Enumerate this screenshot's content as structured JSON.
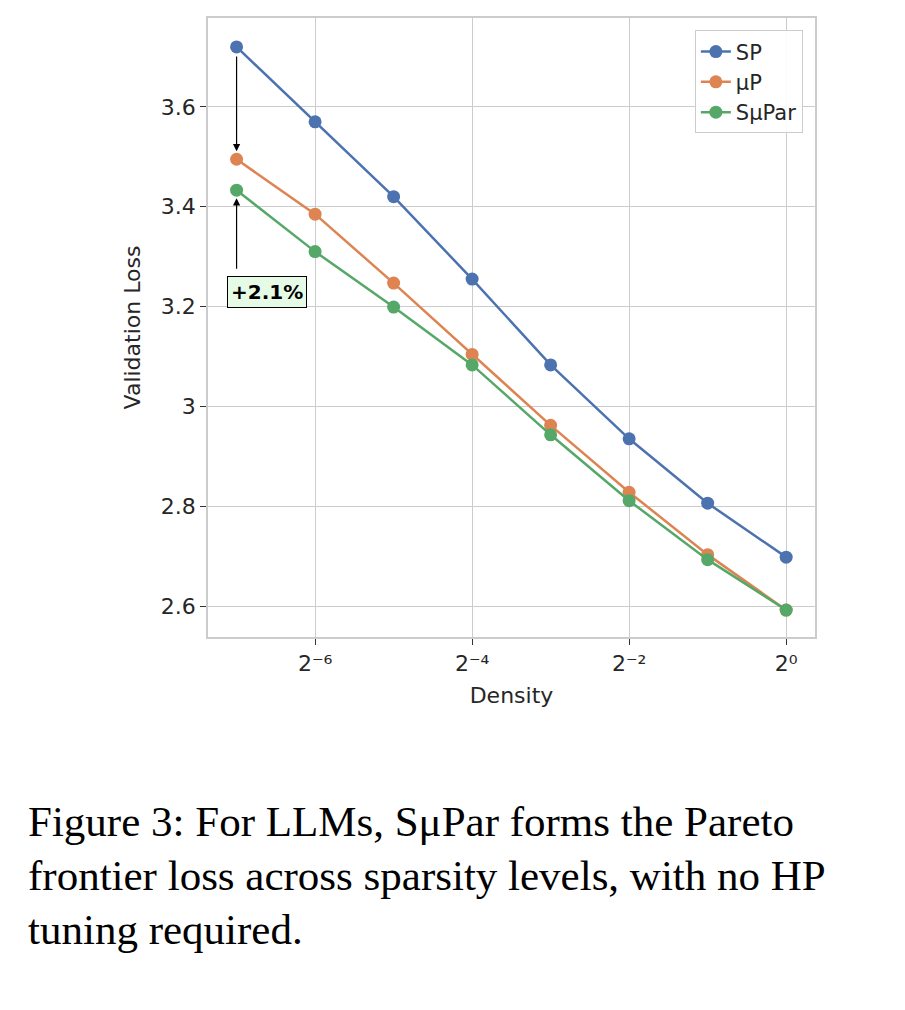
{
  "chart_data": {
    "type": "line",
    "caption": "Figure 3: For LLMs, SμPar forms the Pareto frontier loss across sparsity levels, with no HP tuning required.",
    "x_label": "Density",
    "y_label": "Validation Loss",
    "x": [
      0.0078125,
      0.015625,
      0.03125,
      0.0625,
      0.125,
      0.25,
      0.5,
      1
    ],
    "series": [
      {
        "name": "SP",
        "color": "#4c72b0",
        "marker": "circle",
        "values": [
          3.72,
          3.57,
          3.42,
          3.255,
          3.083,
          2.935,
          2.806,
          2.698
        ]
      },
      {
        "name": "μP",
        "color": "#dd8452",
        "marker": "circle",
        "values": [
          3.495,
          3.385,
          3.247,
          3.104,
          2.962,
          2.828,
          2.703,
          2.592
        ]
      },
      {
        "name": "SμPar",
        "color": "#55a868",
        "marker": "circle",
        "values": [
          3.433,
          3.31,
          3.199,
          3.083,
          2.943,
          2.811,
          2.693,
          2.592
        ]
      }
    ],
    "log": "x",
    "xlim": [
      0.00607,
      1.29
    ],
    "xticks": [
      {
        "value": 0.015625,
        "label": "2⁻⁶"
      },
      {
        "value": 0.0625,
        "label": "2⁻⁴"
      },
      {
        "value": 0.25,
        "label": "2⁻²"
      },
      {
        "value": 1,
        "label": "2⁰"
      }
    ],
    "ylim": [
      2.538,
      3.778
    ],
    "yticks": [
      2.6,
      2.8,
      3.0,
      3.2,
      3.4,
      3.6
    ],
    "grid": true,
    "legend": "upper right",
    "annotations": [
      {
        "text": "+2.1%"
      }
    ]
  }
}
